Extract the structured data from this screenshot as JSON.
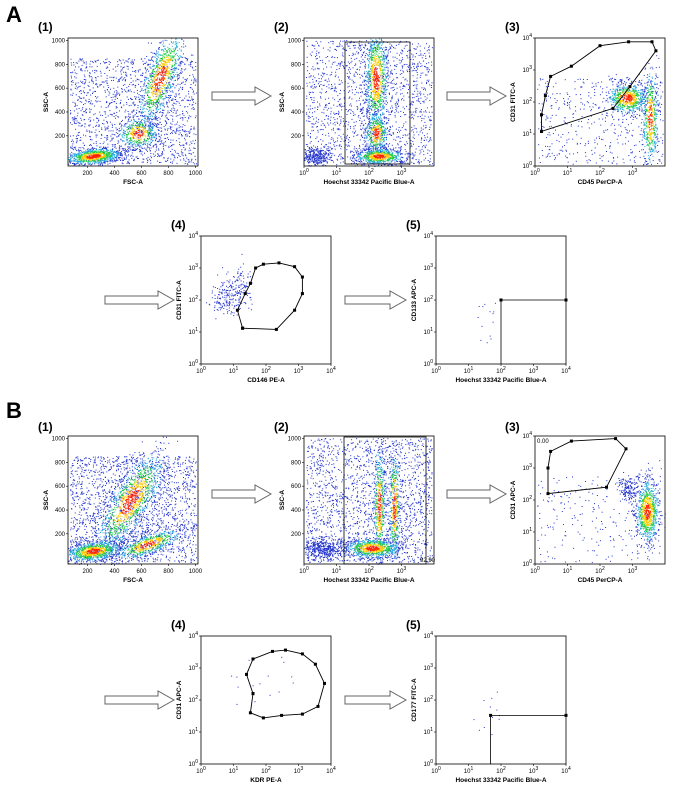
{
  "sections": [
    {
      "letter": "A",
      "panels": [
        {
          "label": "(1)",
          "xlabel": "FSC-A",
          "ylabel": "SSC-A",
          "scale": "linear",
          "xticks": [
            "200",
            "400",
            "600",
            "800",
            "1000"
          ],
          "yticks": [
            "1000",
            "800",
            "600",
            "400",
            "200"
          ],
          "gate": "none"
        },
        {
          "label": "(2)",
          "xlabel": "Hoechst 33342 Pacific Blue-A",
          "ylabel": "SSC-A",
          "scale": "log-linear",
          "xticks": [
            "10^0",
            "10^1",
            "10^2",
            "10^3"
          ],
          "yticks": [
            "1000",
            "800",
            "600",
            "400",
            "200"
          ],
          "gate": "rect"
        },
        {
          "label": "(3)",
          "xlabel": "CD45 PerCP-A",
          "ylabel": "CD31 FITC-A",
          "scale": "log-log",
          "xticks": [
            "10^0",
            "10^1",
            "10^2",
            "10^3"
          ],
          "yticks": [
            "10^4",
            "10^3",
            "10^2",
            "10^1",
            "10^0"
          ],
          "gate": "polygon"
        },
        {
          "label": "(4)",
          "xlabel": "CD146 PE-A",
          "ylabel": "CD31 FITC-A",
          "scale": "log-log",
          "xticks": [
            "10^0",
            "10^1",
            "10^2",
            "10^3",
            "10^4"
          ],
          "yticks": [
            "10^4",
            "10^3",
            "10^2",
            "10^1",
            "10^0"
          ],
          "gate": "polygon"
        },
        {
          "label": "(5)",
          "xlabel": "Hoechst 33342 Pacific Blue-A",
          "ylabel": "CD133 APC-A",
          "scale": "log-log",
          "xticks": [
            "10^0",
            "10^1",
            "10^2",
            "10^3",
            "10^4"
          ],
          "yticks": [
            "10^4",
            "10^3",
            "10^2",
            "10^1",
            "10^0"
          ],
          "gate": "quadrant"
        }
      ]
    },
    {
      "letter": "B",
      "panels": [
        {
          "label": "(1)",
          "xlabel": "FSC-A",
          "ylabel": "SSC-A",
          "scale": "linear",
          "xticks": [
            "200",
            "400",
            "600",
            "800",
            "1000"
          ],
          "yticks": [
            "1000",
            "800",
            "600",
            "400",
            "200"
          ],
          "gate": "none"
        },
        {
          "label": "(2)",
          "xlabel": "Hochest 33342 Pacific Blue-A",
          "ylabel": "SSC-A",
          "scale": "log-linear",
          "xticks": [
            "10^0",
            "10^1",
            "10^2",
            "10^3"
          ],
          "yticks": [
            "1000",
            "800",
            "600",
            "400",
            "200"
          ],
          "gate": "rect",
          "annotation": "92.90"
        },
        {
          "label": "(3)",
          "xlabel": "CD45 PerCP-A",
          "ylabel": "CD31 APC-A",
          "scale": "log-log",
          "xticks": [
            "10^0",
            "10^1",
            "10^2",
            "10^3"
          ],
          "yticks": [
            "10^4",
            "10^3",
            "10^2",
            "10^1",
            "10^0"
          ],
          "gate": "polygon",
          "annotation": "0.00"
        },
        {
          "label": "(4)",
          "xlabel": "KDR PE-A",
          "ylabel": "CD31 APC-A",
          "scale": "log-log",
          "xticks": [
            "10^0",
            "10^1",
            "10^2",
            "10^3",
            "10^4"
          ],
          "yticks": [
            "10^4",
            "10^3",
            "10^2",
            "10^1",
            "10^0"
          ],
          "gate": "polygon"
        },
        {
          "label": "(5)",
          "xlabel": "Hoechst 33342 Pacific Blue-A",
          "ylabel": "CD177 FITC-A",
          "scale": "log-log",
          "xticks": [
            "10^0",
            "10^1",
            "10^2",
            "10^3",
            "10^4"
          ],
          "yticks": [
            "10^4",
            "10^3",
            "10^2",
            "10^1",
            "10^0"
          ],
          "gate": "quadrant"
        }
      ]
    }
  ],
  "colors": {
    "density_low": "#2233cc",
    "density_mid": "#22cc44",
    "density_high": "#ff2200",
    "gate": "#000000"
  }
}
